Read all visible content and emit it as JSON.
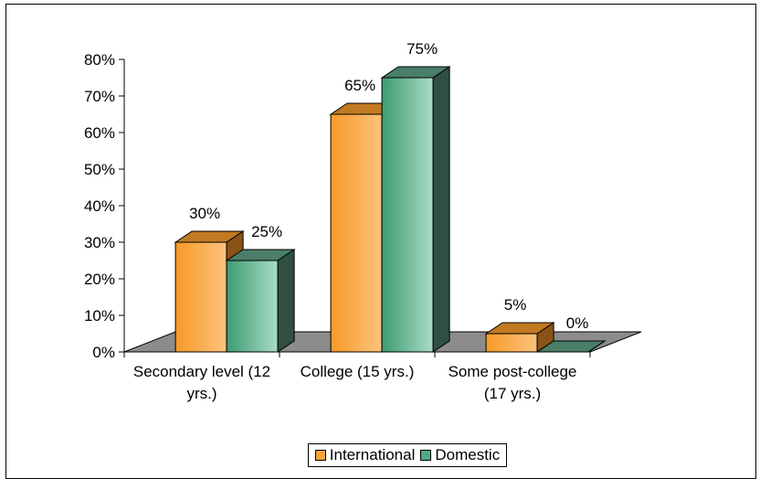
{
  "chart_data": {
    "type": "bar",
    "title": "",
    "xlabel": "",
    "ylabel": "",
    "ylim": [
      0,
      80
    ],
    "yticks": [
      "0%",
      "10%",
      "20%",
      "30%",
      "40%",
      "50%",
      "60%",
      "70%",
      "80%"
    ],
    "ytick_values": [
      0,
      10,
      20,
      30,
      40,
      50,
      60,
      70,
      80
    ],
    "grid": false,
    "legend_position": "bottom",
    "categories": [
      [
        "Secondary level (12",
        "yrs.)"
      ],
      [
        "College (15 yrs.)"
      ],
      [
        "Some post-college",
        "(17 yrs.)"
      ]
    ],
    "series": [
      {
        "name": "International",
        "values": [
          30,
          65,
          5
        ],
        "labels": [
          "30%",
          "65%",
          "5%"
        ],
        "color": "#f7a23c"
      },
      {
        "name": "Domestic",
        "values": [
          25,
          75,
          0
        ],
        "labels": [
          "25%",
          "75%",
          "0%"
        ],
        "color": "#4faa84"
      }
    ],
    "floor_color": "#8c8c8c",
    "style": "3d-column"
  }
}
